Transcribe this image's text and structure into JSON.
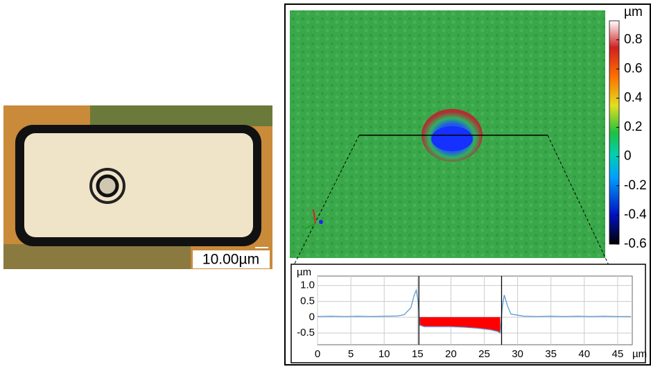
{
  "micrograph": {
    "scale_bar": "10.00µm"
  },
  "height_map": {
    "colorbar": {
      "unit": "µm",
      "lim": [
        -0.6,
        0.93
      ],
      "ticks": [
        0.8,
        0.6,
        0.4,
        0.2,
        0,
        -0.2,
        -0.4,
        -0.6
      ]
    }
  },
  "chart_data": {
    "type": "line",
    "y_unit": "µm",
    "x_unit": "µm",
    "x": [
      0,
      2,
      4,
      6,
      8,
      10,
      12,
      13,
      14,
      14.5,
      14.8,
      15.1,
      15.3,
      16,
      18,
      20,
      22,
      24,
      26,
      27,
      27.4,
      27.7,
      28,
      28.5,
      29,
      31,
      33,
      35,
      37,
      39,
      41,
      43,
      45,
      47
    ],
    "series": [
      {
        "color": "#5b9bd5",
        "values": [
          0.02,
          0.03,
          0.02,
          0.03,
          0.02,
          0.03,
          0.04,
          0.08,
          0.3,
          0.7,
          0.85,
          0.5,
          -0.25,
          -0.3,
          -0.3,
          -0.3,
          -0.32,
          -0.35,
          -0.4,
          -0.45,
          -0.5,
          0.3,
          0.7,
          0.35,
          0.1,
          0.03,
          0.02,
          0.03,
          0.02,
          0.03,
          0.02,
          0.03,
          0.02,
          0.02
        ]
      }
    ],
    "area_color": "#ff0000",
    "cursors": [
      15.2,
      27.6
    ],
    "xlim": [
      0,
      47.2
    ],
    "ylim": [
      -0.87,
      1.3
    ],
    "xticks": [
      0,
      5,
      10,
      15,
      20,
      25,
      30,
      35,
      40,
      45
    ],
    "yticks": [
      {
        "value": 1,
        "label": "1.0"
      },
      0.5,
      0,
      -0.5
    ],
    "grid": true
  }
}
